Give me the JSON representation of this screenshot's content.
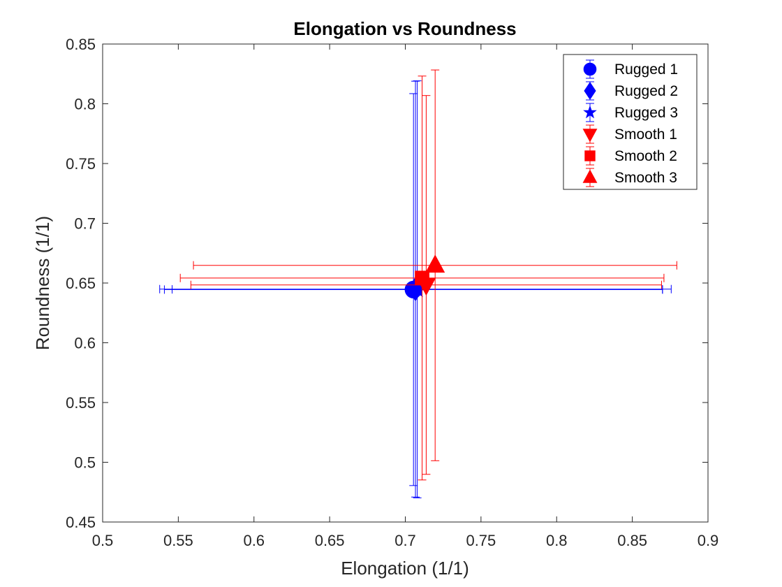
{
  "chart_data": {
    "type": "scatter",
    "title": "Elongation vs Roundness",
    "xlabel": "Elongation (1/1)",
    "ylabel": "Roundness (1/1)",
    "xlim": [
      0.5,
      0.9
    ],
    "ylim": [
      0.45,
      0.85
    ],
    "xticks": [
      "0.5",
      "0.55",
      "0.6",
      "0.65",
      "0.7",
      "0.75",
      "0.8",
      "0.85",
      "0.9"
    ],
    "yticks": [
      "0.45",
      "0.5",
      "0.55",
      "0.6",
      "0.65",
      "0.7",
      "0.75",
      "0.8",
      "0.85"
    ],
    "grid": false,
    "legend_position": "top-right",
    "series": [
      {
        "name": "Rugged 1",
        "marker": "circle",
        "color": "#0000ff",
        "x": 0.7054,
        "y": 0.6445,
        "x_err": 0.1646,
        "y_err": 0.164
      },
      {
        "name": "Rugged 2",
        "marker": "diamond",
        "color": "#0000ff",
        "x": 0.7067,
        "y": 0.6449,
        "x_err": 0.169,
        "y_err": 0.174
      },
      {
        "name": "Rugged 3",
        "marker": "star",
        "color": "#0000ff",
        "x": 0.7079,
        "y": 0.6447,
        "x_err": 0.162,
        "y_err": 0.1745
      },
      {
        "name": "Smooth 1",
        "marker": "triangle-down",
        "color": "#ff0000",
        "x": 0.7138,
        "y": 0.6484,
        "x_err": 0.1555,
        "y_err": 0.1585
      },
      {
        "name": "Smooth 2",
        "marker": "square",
        "color": "#ff0000",
        "x": 0.7111,
        "y": 0.6542,
        "x_err": 0.1598,
        "y_err": 0.169
      },
      {
        "name": "Smooth 3",
        "marker": "triangle-up",
        "color": "#ff0000",
        "x": 0.7197,
        "y": 0.6648,
        "x_err": 0.1597,
        "y_err": 0.1635
      }
    ]
  }
}
